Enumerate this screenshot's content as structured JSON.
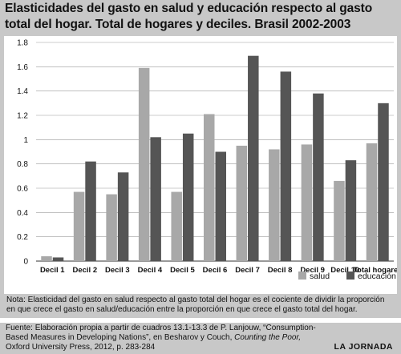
{
  "title_lines": [
    "Elasticidades del gasto en salud y educación respecto al gasto",
    "total del hogar. Total de hogares y deciles. Brasil 2002-2003"
  ],
  "chart_data": {
    "type": "bar",
    "categories": [
      "Decil 1",
      "Decil 2",
      "Decil 3",
      "Decil 4",
      "Decil 5",
      "Decil 6",
      "Decil 7",
      "Decil 8",
      "Decil 9",
      "Decil 10",
      "Total hogares"
    ],
    "series": [
      {
        "name": "salud",
        "color": "#a8a8a8",
        "values": [
          0.04,
          0.57,
          0.55,
          1.59,
          0.57,
          1.21,
          0.95,
          0.92,
          0.96,
          0.66,
          0.97
        ]
      },
      {
        "name": "educación",
        "color": "#555555",
        "values": [
          0.03,
          0.82,
          0.73,
          1.02,
          1.05,
          0.9,
          1.69,
          1.56,
          1.38,
          0.83,
          1.3
        ]
      }
    ],
    "ylim": [
      0,
      1.8
    ],
    "yticks": [
      "0",
      "0.2",
      "0.4",
      "0.6",
      "0.8",
      "1",
      "1.2",
      "1.4",
      "1.6",
      "1.8"
    ],
    "grid": true,
    "legend_position": "bottom-right"
  },
  "note": "Nota: Elasticidad del gasto en salud respecto al gasto total del hogar es el cociente de dividir la proporción en que crece el gasto en salud/educación entre la proporción en que crece el gasto total del hogar.",
  "source": {
    "text": "Fuente: Elaboración propia a partir de cuadros 13.1-13.3 de P. Lanjouw, “Consumption-Based Measures in Developing Nations”, en Besharov y Couch, ",
    "book": "Counting the Poor,",
    "tail": " Oxford University Press, 2012, p. 283-284"
  },
  "brand": "LA JORNADA"
}
